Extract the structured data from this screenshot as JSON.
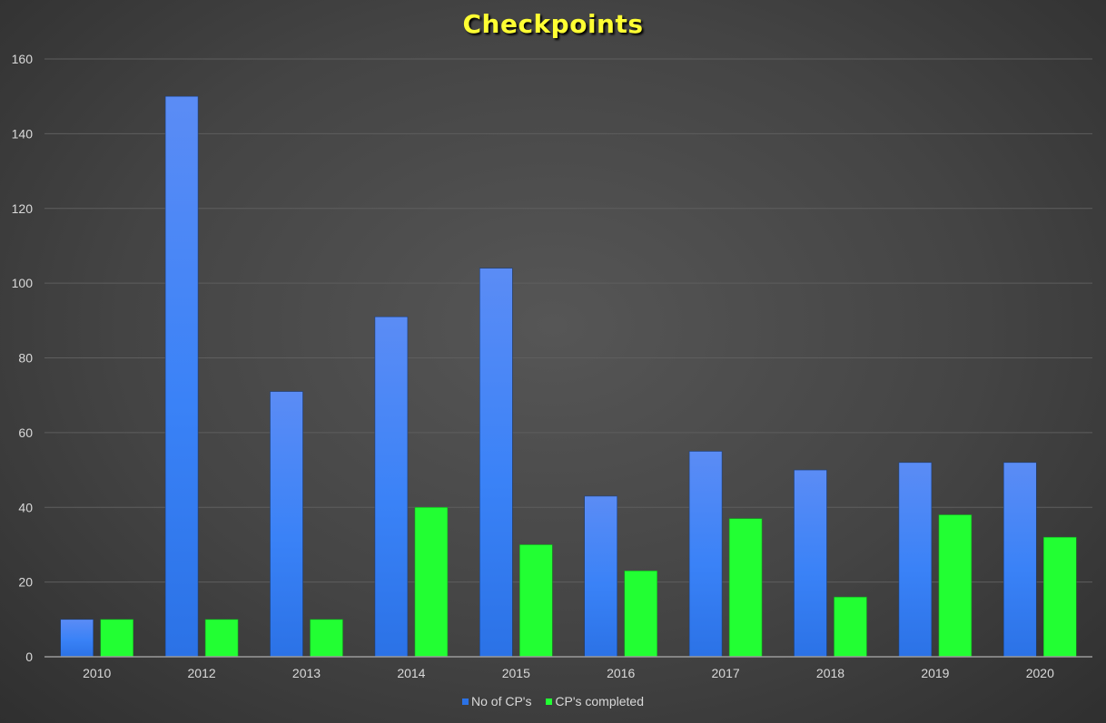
{
  "colors": {
    "title": "#ffff33",
    "series_1_top": "#5b8cf5",
    "series_1_bottom": "#2b72e6",
    "series_2": "#22ff33",
    "grid": "#5e5e5e",
    "axis_text": "#d9d9d9"
  },
  "chart_data": {
    "type": "bar",
    "title": "Checkpoints",
    "xlabel": "",
    "ylabel": "",
    "ylim": [
      0,
      160
    ],
    "yticks": [
      0,
      20,
      40,
      60,
      80,
      100,
      120,
      140,
      160
    ],
    "grid": true,
    "legend_position": "bottom",
    "categories": [
      "2010",
      "2012",
      "2013",
      "2014",
      "2015",
      "2016",
      "2017",
      "2018",
      "2019",
      "2020"
    ],
    "series": [
      {
        "name": "No of CP's",
        "values": [
          10,
          150,
          71,
          91,
          104,
          43,
          55,
          50,
          52,
          52
        ]
      },
      {
        "name": "CP's completed",
        "values": [
          10,
          10,
          10,
          40,
          30,
          23,
          37,
          16,
          38,
          32
        ]
      }
    ]
  }
}
